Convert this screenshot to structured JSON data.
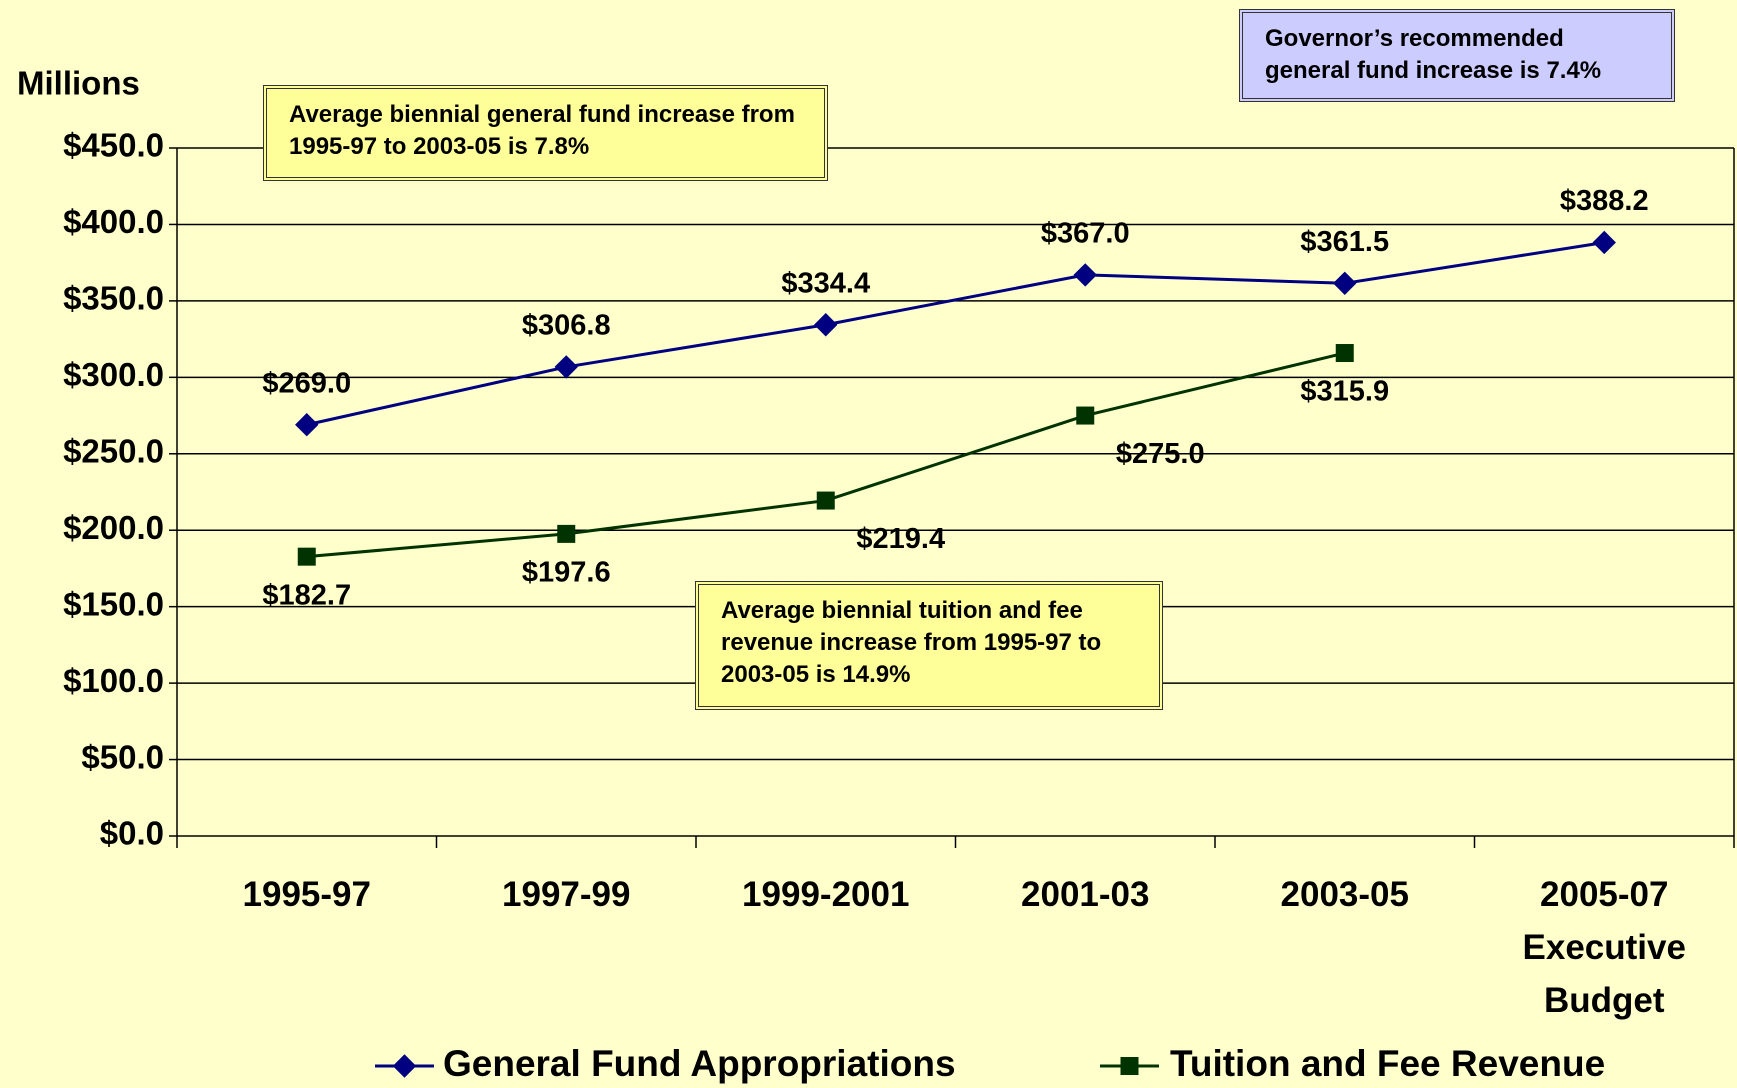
{
  "chart_data": {
    "type": "line",
    "y_axis_label": "Millions",
    "categories": [
      "1995-97",
      "1997-99",
      "1999-2001",
      "2001-03",
      "2003-05",
      "2005-07 Executive Budget"
    ],
    "series": [
      {
        "name": "General Fund Appropriations",
        "color": "#000080",
        "marker": "diamond",
        "values": [
          269.0,
          306.8,
          334.4,
          367.0,
          361.5,
          388.2
        ],
        "value_labels": [
          "$269.0",
          "$306.8",
          "$334.4",
          "$367.0",
          "$361.5",
          "$388.2"
        ]
      },
      {
        "name": "Tuition and Fee Revenue",
        "color": "#003300",
        "marker": "square",
        "values": [
          182.7,
          197.6,
          219.4,
          275.0,
          315.9,
          null
        ],
        "value_labels": [
          "$182.7",
          "$197.6",
          "$219.4",
          "$275.0",
          "$315.9",
          null
        ]
      }
    ],
    "ylim": [
      0,
      450
    ],
    "yticks": [
      {
        "value": 0,
        "label": "$0.0"
      },
      {
        "value": 50,
        "label": "$50.0"
      },
      {
        "value": 100,
        "label": "$100.0"
      },
      {
        "value": 150,
        "label": "$150.0"
      },
      {
        "value": 200,
        "label": "$200.0"
      },
      {
        "value": 250,
        "label": "$250.0"
      },
      {
        "value": 300,
        "label": "$300.0"
      },
      {
        "value": 350,
        "label": "$350.0"
      },
      {
        "value": 400,
        "label": "$400.0"
      },
      {
        "value": 450,
        "label": "$450.0"
      }
    ],
    "grid": true,
    "legend": "bottom",
    "annotations": [
      {
        "text": "Average biennial general fund increase from 1995-97 to 2003-05 is 7.8%",
        "color": "#ffff99"
      },
      {
        "text": "Average biennial tuition and fee revenue increase from 1995-97 to 2003-05 is 14.9%",
        "color": "#ffff99"
      },
      {
        "text": "Governor’s recommended general fund increase is 7.4%",
        "color": "#ccccff"
      }
    ]
  }
}
